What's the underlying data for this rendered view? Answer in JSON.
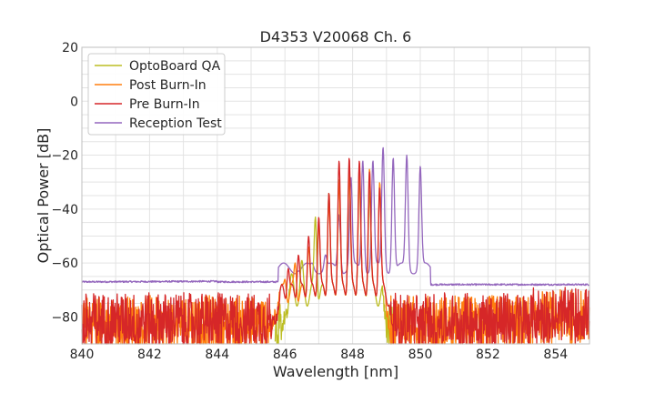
{
  "chart_data": {
    "type": "line",
    "title": "D4353 V20068 Ch. 6",
    "xlabel": "Wavelength [nm]",
    "ylabel": "Optical Power [dB]",
    "xlim": [
      840,
      855
    ],
    "ylim": [
      -90,
      20
    ],
    "xticks": [
      840,
      842,
      844,
      846,
      848,
      850,
      852,
      854
    ],
    "yticks": [
      -80,
      -60,
      -40,
      -20,
      0,
      20
    ],
    "grid": true,
    "legend_position": "top-left",
    "series": [
      {
        "name": "OptoBoard QA",
        "color": "#bcbd22",
        "noise_floor": {
          "x_range": [
            845.7,
            846.1
          ],
          "level": -83,
          "spread": 8,
          "also": [
            [
              849.0,
              849.2
            ]
          ]
        },
        "peaks": [
          {
            "x": 846.2,
            "y": -64
          },
          {
            "x": 846.5,
            "y": -59
          },
          {
            "x": 846.9,
            "y": -43
          },
          {
            "x": 847.3,
            "y": -34
          },
          {
            "x": 847.6,
            "y": -29
          },
          {
            "x": 847.9,
            "y": -27
          },
          {
            "x": 848.2,
            "y": -29
          },
          {
            "x": 848.5,
            "y": -33
          }
        ],
        "edge_x": [
          845.9,
          849.0
        ]
      },
      {
        "name": "Post Burn-In",
        "color": "#ff7f0e",
        "noise_floor": {
          "x_range": [
            840.0,
            855.0
          ],
          "level": -82,
          "spread": 10
        },
        "peaks": [
          {
            "x": 846.0,
            "y": -66
          },
          {
            "x": 846.3,
            "y": -60
          },
          {
            "x": 846.7,
            "y": -54
          },
          {
            "x": 847.0,
            "y": -45
          },
          {
            "x": 847.3,
            "y": -37
          },
          {
            "x": 847.6,
            "y": -30
          },
          {
            "x": 847.9,
            "y": -26
          },
          {
            "x": 848.2,
            "y": -24
          },
          {
            "x": 848.5,
            "y": -25
          },
          {
            "x": 848.8,
            "y": -30
          }
        ],
        "edge_x": [
          845.6,
          849.1
        ]
      },
      {
        "name": "Pre Burn-In",
        "color": "#d62728",
        "noise_floor": {
          "x_range": [
            840.0,
            855.0
          ],
          "level": -81,
          "spread": 10
        },
        "peaks": [
          {
            "x": 846.1,
            "y": -62
          },
          {
            "x": 846.4,
            "y": -57
          },
          {
            "x": 846.7,
            "y": -50
          },
          {
            "x": 847.0,
            "y": -43
          },
          {
            "x": 847.3,
            "y": -34
          },
          {
            "x": 847.6,
            "y": -22
          },
          {
            "x": 847.9,
            "y": -21
          },
          {
            "x": 848.2,
            "y": -22
          },
          {
            "x": 848.5,
            "y": -26
          },
          {
            "x": 848.8,
            "y": -32
          }
        ],
        "edge_x": [
          845.6,
          849.2
        ]
      },
      {
        "name": "Reception Test",
        "color": "#9467bd",
        "floor_level": -67,
        "floor_level_right": -68,
        "peaks": [
          {
            "x": 846.4,
            "y": -63
          },
          {
            "x": 846.8,
            "y": -60
          },
          {
            "x": 847.2,
            "y": -57
          },
          {
            "x": 847.6,
            "y": -42
          },
          {
            "x": 847.95,
            "y": -28
          },
          {
            "x": 848.3,
            "y": -22
          },
          {
            "x": 848.6,
            "y": -22
          },
          {
            "x": 848.9,
            "y": -17
          },
          {
            "x": 849.2,
            "y": -21
          },
          {
            "x": 849.6,
            "y": -20
          },
          {
            "x": 850.0,
            "y": -24
          }
        ],
        "edge_x": [
          845.8,
          850.3
        ]
      }
    ]
  }
}
